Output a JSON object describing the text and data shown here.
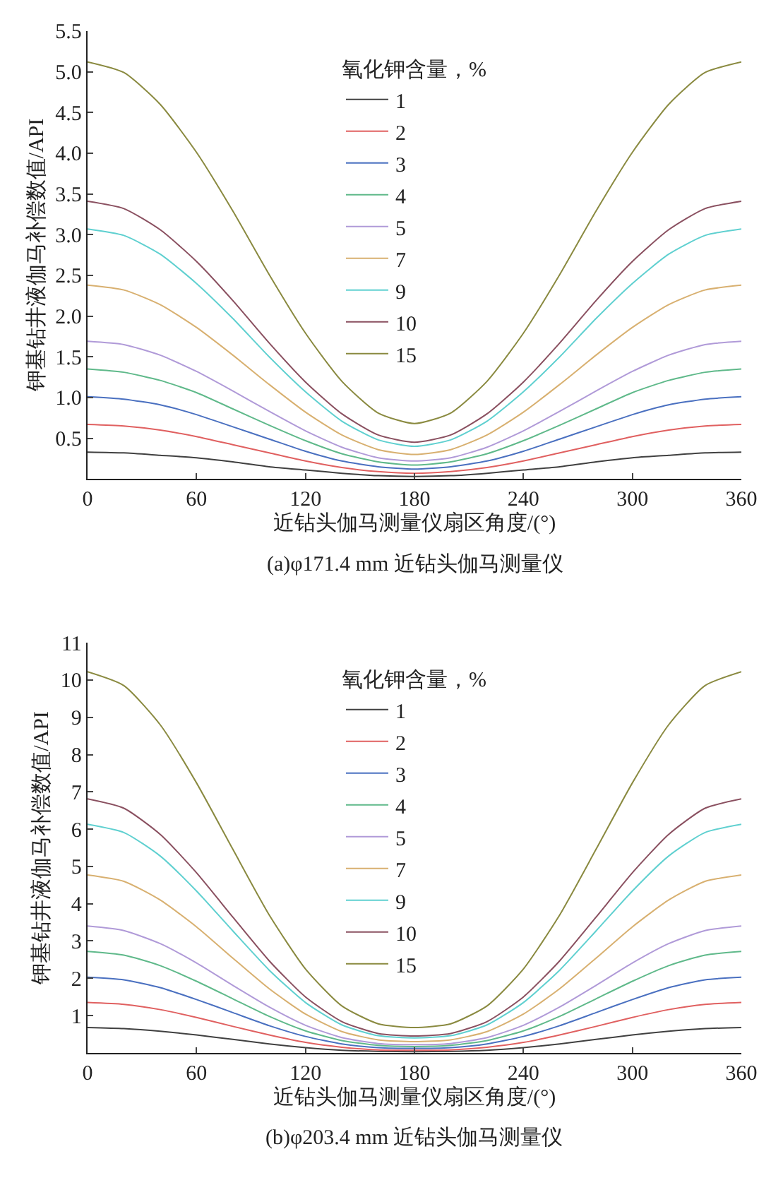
{
  "chart_data": [
    {
      "type": "line",
      "xlabel": "近钻头伽马测量仪扇区角度/(°)",
      "ylabel": "钾基钻井液伽马补偿数值/API",
      "legend_title": "氧化钾含量，%",
      "annotations": [
        "(a)φ171.4 mm 近钻头伽马测量仪"
      ],
      "legend": "top",
      "marker": "none",
      "line_style": "solid",
      "xlim": [
        0,
        360
      ],
      "xticks": [
        0,
        60,
        120,
        180,
        240,
        300,
        360
      ],
      "ylim": [
        0,
        5.5
      ],
      "yticks": [
        0.5,
        {
          "value": 1,
          "label": "1.0"
        },
        1.5,
        {
          "value": 2,
          "label": "2.0"
        },
        2.5,
        {
          "value": 3,
          "label": "3.0"
        },
        3.5,
        {
          "value": 4,
          "label": "4.0"
        },
        4.5,
        {
          "value": 5,
          "label": "5.0"
        },
        5.5
      ],
      "x": [
        0,
        20,
        40,
        60,
        80,
        100,
        120,
        140,
        160,
        180,
        200,
        220,
        240,
        260,
        280,
        300,
        320,
        340,
        360
      ],
      "series": [
        {
          "name": "1",
          "color": "#404040",
          "values": [
            0.33,
            0.32,
            0.29,
            0.26,
            0.21,
            0.15,
            0.11,
            0.07,
            0.04,
            0.03,
            0.04,
            0.07,
            0.11,
            0.15,
            0.21,
            0.26,
            0.29,
            0.32,
            0.33
          ]
        },
        {
          "name": "2",
          "color": "#e06060",
          "values": [
            0.67,
            0.65,
            0.6,
            0.52,
            0.42,
            0.32,
            0.22,
            0.14,
            0.09,
            0.07,
            0.09,
            0.14,
            0.22,
            0.32,
            0.42,
            0.52,
            0.6,
            0.65,
            0.67
          ]
        },
        {
          "name": "3",
          "color": "#4a70c0",
          "values": [
            1.01,
            0.98,
            0.91,
            0.79,
            0.64,
            0.49,
            0.34,
            0.22,
            0.15,
            0.12,
            0.15,
            0.22,
            0.34,
            0.49,
            0.64,
            0.79,
            0.91,
            0.98,
            1.01
          ]
        },
        {
          "name": "4",
          "color": "#5fb98a",
          "values": [
            1.35,
            1.31,
            1.21,
            1.06,
            0.86,
            0.66,
            0.47,
            0.31,
            0.21,
            0.17,
            0.21,
            0.31,
            0.47,
            0.66,
            0.86,
            1.06,
            1.21,
            1.31,
            1.35
          ]
        },
        {
          "name": "5",
          "color": "#b09ad8",
          "values": [
            1.69,
            1.65,
            1.52,
            1.32,
            1.08,
            0.83,
            0.59,
            0.39,
            0.26,
            0.22,
            0.26,
            0.39,
            0.59,
            0.83,
            1.08,
            1.32,
            1.52,
            1.65,
            1.69
          ]
        },
        {
          "name": "7",
          "color": "#d8b070",
          "values": [
            2.38,
            2.32,
            2.14,
            1.86,
            1.52,
            1.16,
            0.82,
            0.54,
            0.36,
            0.3,
            0.36,
            0.54,
            0.82,
            1.16,
            1.52,
            1.86,
            2.14,
            2.32,
            2.38
          ]
        },
        {
          "name": "9",
          "color": "#5fd0d0",
          "values": [
            3.07,
            2.99,
            2.76,
            2.4,
            1.97,
            1.5,
            1.07,
            0.71,
            0.48,
            0.4,
            0.48,
            0.71,
            1.07,
            1.5,
            1.97,
            2.4,
            2.76,
            2.99,
            3.07
          ]
        },
        {
          "name": "10",
          "color": "#8a5060",
          "values": [
            3.41,
            3.32,
            3.06,
            2.67,
            2.19,
            1.67,
            1.19,
            0.8,
            0.54,
            0.45,
            0.54,
            0.8,
            1.19,
            1.67,
            2.19,
            2.67,
            3.06,
            3.32,
            3.41
          ]
        },
        {
          "name": "15",
          "color": "#8a8a40",
          "values": [
            5.12,
            4.99,
            4.6,
            4.01,
            3.29,
            2.51,
            1.79,
            1.2,
            0.81,
            0.68,
            0.81,
            1.2,
            1.79,
            2.51,
            3.29,
            4.01,
            4.6,
            4.99,
            5.12
          ]
        }
      ]
    },
    {
      "type": "line",
      "xlabel": "近钻头伽马测量仪扇区角度/(°)",
      "ylabel": "钾基钻井液伽马补偿数值/API",
      "legend_title": "氧化钾含量，%",
      "annotations": [
        "(b)φ203.4 mm 近钻头伽马测量仪"
      ],
      "legend": "top",
      "marker": "none",
      "line_style": "solid",
      "xlim": [
        0,
        360
      ],
      "xticks": [
        0,
        60,
        120,
        180,
        240,
        300,
        360
      ],
      "ylim": [
        0,
        11
      ],
      "yticks": [
        1,
        2,
        3,
        4,
        5,
        6,
        7,
        8,
        9,
        10,
        11
      ],
      "x": [
        0,
        20,
        40,
        60,
        80,
        100,
        120,
        140,
        160,
        180,
        200,
        220,
        240,
        260,
        280,
        300,
        320,
        340,
        360
      ],
      "series": [
        {
          "name": "1",
          "color": "#404040",
          "values": [
            0.68,
            0.65,
            0.58,
            0.48,
            0.36,
            0.24,
            0.14,
            0.07,
            0.04,
            0.03,
            0.04,
            0.07,
            0.14,
            0.24,
            0.36,
            0.48,
            0.58,
            0.65,
            0.68
          ]
        },
        {
          "name": "2",
          "color": "#e06060",
          "values": [
            1.35,
            1.3,
            1.16,
            0.95,
            0.71,
            0.48,
            0.28,
            0.15,
            0.08,
            0.07,
            0.08,
            0.15,
            0.28,
            0.48,
            0.71,
            0.95,
            1.16,
            1.3,
            1.35
          ]
        },
        {
          "name": "3",
          "color": "#4a70c0",
          "values": [
            2.03,
            1.96,
            1.75,
            1.43,
            1.08,
            0.73,
            0.44,
            0.24,
            0.14,
            0.12,
            0.14,
            0.24,
            0.44,
            0.73,
            1.08,
            1.43,
            1.75,
            1.96,
            2.03
          ]
        },
        {
          "name": "4",
          "color": "#5fb98a",
          "values": [
            2.72,
            2.62,
            2.34,
            1.92,
            1.45,
            0.98,
            0.59,
            0.33,
            0.2,
            0.17,
            0.2,
            0.33,
            0.59,
            0.98,
            1.45,
            1.92,
            2.34,
            2.62,
            2.72
          ]
        },
        {
          "name": "5",
          "color": "#b09ad8",
          "values": [
            3.4,
            3.28,
            2.93,
            2.41,
            1.81,
            1.23,
            0.74,
            0.41,
            0.25,
            0.22,
            0.25,
            0.41,
            0.74,
            1.23,
            1.81,
            2.41,
            2.93,
            3.28,
            3.4
          ]
        },
        {
          "name": "7",
          "color": "#d8b070",
          "values": [
            4.77,
            4.6,
            4.1,
            3.38,
            2.54,
            1.72,
            1.04,
            0.57,
            0.35,
            0.3,
            0.35,
            0.57,
            1.04,
            1.72,
            2.54,
            3.38,
            4.1,
            4.6,
            4.77
          ]
        },
        {
          "name": "9",
          "color": "#5fd0d0",
          "values": [
            6.13,
            5.91,
            5.28,
            4.34,
            3.27,
            2.22,
            1.35,
            0.75,
            0.46,
            0.4,
            0.46,
            0.75,
            1.35,
            2.22,
            3.27,
            4.34,
            5.28,
            5.91,
            6.13
          ]
        },
        {
          "name": "10",
          "color": "#8a5060",
          "values": [
            6.81,
            6.56,
            5.86,
            4.83,
            3.64,
            2.47,
            1.5,
            0.84,
            0.52,
            0.45,
            0.52,
            0.84,
            1.5,
            2.47,
            3.64,
            4.83,
            5.86,
            6.56,
            6.81
          ]
        },
        {
          "name": "15",
          "color": "#8a8a40",
          "values": [
            10.22,
            9.85,
            8.8,
            7.24,
            5.46,
            3.7,
            2.25,
            1.26,
            0.78,
            0.68,
            0.78,
            1.26,
            2.25,
            3.7,
            5.46,
            7.24,
            8.8,
            9.85,
            10.22
          ]
        }
      ]
    }
  ]
}
